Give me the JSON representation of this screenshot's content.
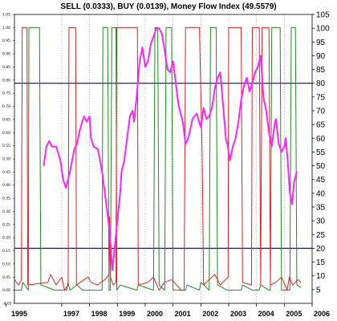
{
  "chart_data": {
    "type": "line",
    "title": "SELL (0.0333), BUY (0.0139), Money Flow Index (49.5579)",
    "x_ticks": [
      "1995",
      "1997",
      "1998",
      "1999",
      "2000",
      "2001",
      "2002",
      "2003",
      "2004",
      "2005",
      "2006"
    ],
    "x_range": [
      1995.3,
      2006.0
    ],
    "left_axis": {
      "ticks": [
        "1.05",
        "1.00",
        "0.95",
        "0.90",
        "0.85",
        "0.80",
        "0.75",
        "0.70",
        "0.65",
        "0.60",
        "0.55",
        "0.50",
        "0.45",
        "0.40",
        "0.35",
        "0.30",
        "0.25",
        "0.20",
        "0.15",
        "0.10",
        "0.05",
        "0.00",
        "-0.05"
      ],
      "range": [
        -0.05,
        1.05
      ]
    },
    "right_axis": {
      "ticks": [
        "105",
        "100",
        "95",
        "90",
        "85",
        "80",
        "75",
        "70",
        "65",
        "60",
        "55",
        "50",
        "45",
        "40",
        "35",
        "30",
        "25",
        "20",
        "15",
        "10",
        "5"
      ],
      "range": [
        0,
        105
      ]
    },
    "reference_lines": [
      {
        "value": 80,
        "color": "#1a1aa6"
      },
      {
        "value": 20,
        "color": "#1a1aa6"
      }
    ],
    "grid": "vertical dotted",
    "colors": {
      "sell": "#e02020",
      "buy": "#1f8a1f",
      "mfi": "#ff22ff",
      "ref": "#1a1aa6"
    },
    "series": [
      {
        "role": "sell",
        "points": [
          [
            1995.3,
            0.04
          ],
          [
            1995.45,
            0.02
          ],
          [
            1995.55,
            0.04
          ],
          [
            1995.58,
            1.0
          ],
          [
            1995.75,
            1.0
          ],
          [
            1995.78,
            0.02
          ],
          [
            1996.5,
            0.03
          ],
          [
            1996.6,
            0.06
          ],
          [
            1996.8,
            0.02
          ],
          [
            1997.0,
            0.05
          ],
          [
            1997.1,
            0.0
          ],
          [
            1997.23,
            0.02
          ],
          [
            1997.26,
            1.0
          ],
          [
            1997.5,
            1.0
          ],
          [
            1997.53,
            0.02
          ],
          [
            1997.8,
            0.04
          ],
          [
            1997.95,
            0.05
          ],
          [
            1998.05,
            0.03
          ],
          [
            1998.28,
            0.02
          ],
          [
            1998.55,
            0.04
          ],
          [
            1998.7,
            0.06
          ],
          [
            1998.72,
            0.28
          ],
          [
            1998.75,
            0.05
          ],
          [
            1998.85,
            0.02
          ],
          [
            1998.95,
            0.03
          ],
          [
            1998.98,
            1.0
          ],
          [
            1999.72,
            1.0
          ],
          [
            1999.75,
            0.02
          ],
          [
            2000.1,
            0.03
          ],
          [
            2000.3,
            0.05
          ],
          [
            2000.5,
            0.0
          ],
          [
            2000.7,
            0.03
          ],
          [
            2000.95,
            0.04
          ],
          [
            2001.3,
            0.0
          ],
          [
            2001.4,
            0.0
          ],
          [
            2001.45,
            1.0
          ],
          [
            2001.95,
            1.0
          ],
          [
            2002.05,
            0.5
          ],
          [
            2002.1,
            0.02
          ],
          [
            2002.3,
            0.04
          ],
          [
            2002.5,
            0.06
          ],
          [
            2002.7,
            0.02
          ],
          [
            2002.98,
            0.05
          ],
          [
            2003.0,
            1.0
          ],
          [
            2003.45,
            1.0
          ],
          [
            2003.5,
            0.03
          ],
          [
            2003.82,
            0.02
          ],
          [
            2003.85,
            1.0
          ],
          [
            2004.1,
            1.0
          ],
          [
            2004.15,
            0.02
          ],
          [
            2004.2,
            1.0
          ],
          [
            2004.45,
            1.0
          ],
          [
            2004.5,
            0.02
          ],
          [
            2004.7,
            0.03
          ],
          [
            2004.9,
            0.05
          ],
          [
            2005.1,
            0.0
          ],
          [
            2005.18,
            0.05
          ],
          [
            2005.3,
            0.02
          ],
          [
            2005.5,
            0.04
          ],
          [
            2005.6,
            0.03
          ]
        ]
      },
      {
        "role": "buy",
        "points": [
          [
            1995.3,
            0.0
          ],
          [
            1995.55,
            0.0
          ],
          [
            1995.6,
            0.03
          ],
          [
            1995.8,
            0.0
          ],
          [
            1995.82,
            1.0
          ],
          [
            1996.2,
            1.0
          ],
          [
            1996.25,
            0.02
          ],
          [
            1996.5,
            0.01
          ],
          [
            1996.75,
            0.0
          ],
          [
            1997.18,
            0.0
          ],
          [
            1997.22,
            0.03
          ],
          [
            1997.3,
            0.0
          ],
          [
            1997.55,
            0.02
          ],
          [
            1997.75,
            0.0
          ],
          [
            1998.2,
            0.0
          ],
          [
            1998.45,
            0.0
          ],
          [
            1998.48,
            1.0
          ],
          [
            1998.65,
            1.0
          ],
          [
            1998.7,
            0.0
          ],
          [
            1998.75,
            0.0
          ],
          [
            1998.8,
            1.0
          ],
          [
            1998.95,
            1.0
          ],
          [
            1998.98,
            0.0
          ],
          [
            1999.1,
            0.02
          ],
          [
            1999.7,
            0.0
          ],
          [
            1999.75,
            0.02
          ],
          [
            2000.3,
            0.0
          ],
          [
            2000.35,
            1.0
          ],
          [
            2000.45,
            1.0
          ],
          [
            2000.5,
            0.02
          ],
          [
            2000.7,
            0.0
          ],
          [
            2000.75,
            1.0
          ],
          [
            2000.95,
            1.0
          ],
          [
            2001.0,
            0.0
          ],
          [
            2001.45,
            0.0
          ],
          [
            2001.5,
            0.02
          ],
          [
            2001.95,
            0.0
          ],
          [
            2002.0,
            0.03
          ],
          [
            2002.3,
            0.0
          ],
          [
            2002.35,
            1.0
          ],
          [
            2002.55,
            1.0
          ],
          [
            2002.6,
            0.02
          ],
          [
            2002.95,
            0.0
          ],
          [
            2003.45,
            0.0
          ],
          [
            2003.5,
            0.02
          ],
          [
            2003.85,
            0.0
          ],
          [
            2004.1,
            0.0
          ],
          [
            2004.15,
            0.02
          ],
          [
            2004.45,
            0.0
          ],
          [
            2004.5,
            0.0
          ],
          [
            2004.55,
            1.0
          ],
          [
            2004.85,
            1.0
          ],
          [
            2004.9,
            0.0
          ],
          [
            2005.2,
            0.0
          ],
          [
            2005.25,
            1.0
          ],
          [
            2005.4,
            1.0
          ],
          [
            2005.45,
            0.02
          ],
          [
            2005.6,
            0.01
          ]
        ]
      },
      {
        "role": "mfi",
        "points": [
          [
            1996.35,
            50
          ],
          [
            1996.45,
            57
          ],
          [
            1996.55,
            59
          ],
          [
            1996.65,
            57
          ],
          [
            1996.8,
            57
          ],
          [
            1996.95,
            52
          ],
          [
            1997.05,
            45
          ],
          [
            1997.15,
            42
          ],
          [
            1997.3,
            48
          ],
          [
            1997.45,
            56
          ],
          [
            1997.55,
            58
          ],
          [
            1997.65,
            63
          ],
          [
            1997.8,
            68
          ],
          [
            1997.9,
            66
          ],
          [
            1998.0,
            68
          ],
          [
            1998.05,
            60
          ],
          [
            1998.15,
            57
          ],
          [
            1998.3,
            56
          ],
          [
            1998.45,
            48
          ],
          [
            1998.55,
            40
          ],
          [
            1998.7,
            28
          ],
          [
            1998.75,
            22
          ],
          [
            1998.82,
            12
          ],
          [
            1998.9,
            20
          ],
          [
            1999.0,
            30
          ],
          [
            1999.1,
            40
          ],
          [
            1999.15,
            48
          ],
          [
            1999.25,
            52
          ],
          [
            1999.35,
            60
          ],
          [
            1999.45,
            68
          ],
          [
            1999.55,
            70
          ],
          [
            1999.6,
            66
          ],
          [
            1999.7,
            76
          ],
          [
            1999.8,
            88
          ],
          [
            1999.9,
            93
          ],
          [
            2000.0,
            86
          ],
          [
            2000.1,
            88
          ],
          [
            2000.2,
            94
          ],
          [
            2000.3,
            97
          ],
          [
            2000.4,
            100
          ],
          [
            2000.5,
            100
          ],
          [
            2000.6,
            98
          ],
          [
            2000.7,
            92
          ],
          [
            2000.8,
            85
          ],
          [
            2000.9,
            84
          ],
          [
            2001.0,
            88
          ],
          [
            2001.1,
            80
          ],
          [
            2001.2,
            72
          ],
          [
            2001.35,
            66
          ],
          [
            2001.45,
            58
          ],
          [
            2001.55,
            60
          ],
          [
            2001.7,
            67
          ],
          [
            2001.85,
            69
          ],
          [
            2002.0,
            64
          ],
          [
            2002.1,
            71
          ],
          [
            2002.2,
            67
          ],
          [
            2002.3,
            68
          ],
          [
            2002.4,
            71
          ],
          [
            2002.5,
            78
          ],
          [
            2002.6,
            82
          ],
          [
            2002.7,
            84
          ],
          [
            2002.8,
            72
          ],
          [
            2002.9,
            60
          ],
          [
            2002.95,
            58
          ],
          [
            2003.05,
            52
          ],
          [
            2003.15,
            57
          ],
          [
            2003.25,
            60
          ],
          [
            2003.35,
            66
          ],
          [
            2003.45,
            74
          ],
          [
            2003.55,
            79
          ],
          [
            2003.65,
            82
          ],
          [
            2003.75,
            77
          ],
          [
            2003.85,
            80
          ],
          [
            2003.95,
            84
          ],
          [
            2004.05,
            86
          ],
          [
            2004.15,
            90
          ],
          [
            2004.25,
            75
          ],
          [
            2004.35,
            70
          ],
          [
            2004.45,
            62
          ],
          [
            2004.55,
            57
          ],
          [
            2004.65,
            65
          ],
          [
            2004.7,
            67
          ],
          [
            2004.8,
            58
          ],
          [
            2004.9,
            55
          ],
          [
            2005.0,
            57
          ],
          [
            2005.05,
            60
          ],
          [
            2005.12,
            52
          ],
          [
            2005.2,
            40
          ],
          [
            2005.28,
            36
          ],
          [
            2005.35,
            44
          ],
          [
            2005.45,
            48
          ]
        ]
      }
    ]
  }
}
